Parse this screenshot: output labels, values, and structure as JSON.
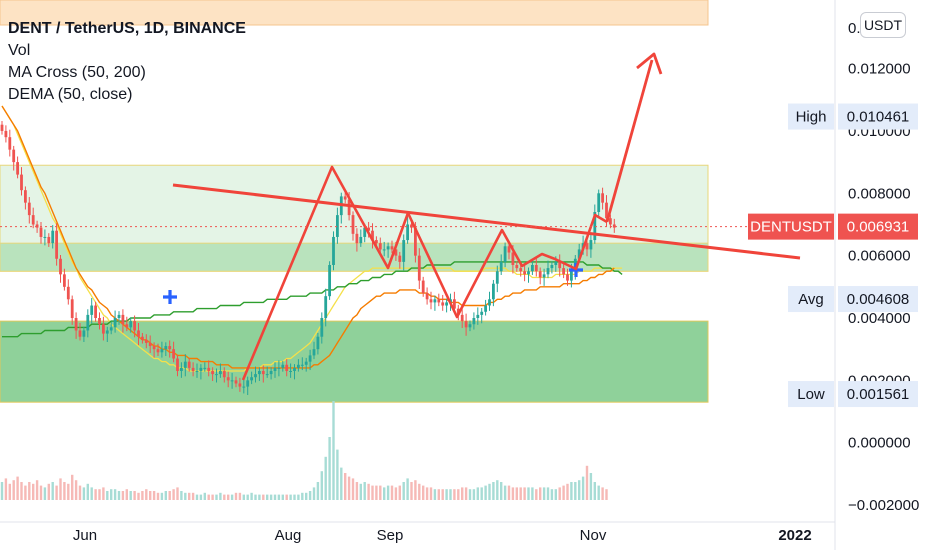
{
  "header": {
    "title": "DENT / TetherUS, 1D, BINANCE",
    "indicators": [
      "Vol",
      "MA Cross (50, 200)",
      "DEMA (50, close)"
    ]
  },
  "currency_button": "USDT",
  "colors": {
    "up": "#26a69a",
    "down": "#ef5350",
    "drawing": "#f0443a",
    "ma_fast": "#f5e04a",
    "ma_slow": "#2e9e2e",
    "dema": "#f57c00",
    "zone_green": "#8fd19a",
    "zone_light": "#e4f4e6",
    "zone_orange": "#fde3c4",
    "cross_marker": "#2962ff"
  },
  "chart_data": {
    "type": "candlestick",
    "title": "DENT / TetherUS, 1D, BINANCE",
    "ylim": [
      -0.0028,
      0.0142
    ],
    "y_ticks": [
      "0.012000",
      "0.010000",
      "0.008000",
      "0.006000",
      "0.004000",
      "0.002000",
      "0.000000",
      "−0.002000"
    ],
    "top_tick_partial": "0.",
    "x_ticks": [
      "Jun",
      "Aug",
      "Sep",
      "Nov",
      "2022"
    ],
    "price_tags": [
      {
        "label": "High",
        "value": "0.010461",
        "kind": "stat"
      },
      {
        "label": "DENTUSDT",
        "value": "0.006931",
        "kind": "last"
      },
      {
        "label": "Avg",
        "value": "0.004608",
        "kind": "stat"
      },
      {
        "label": "Low",
        "value": "0.001561",
        "kind": "stat"
      }
    ],
    "last_price": 0.006931,
    "closes": [
      0.01,
      0.0098,
      0.0094,
      0.009,
      0.0086,
      0.0081,
      0.0077,
      0.0073,
      0.007,
      0.0069,
      0.0066,
      0.0066,
      0.0064,
      0.0068,
      0.0059,
      0.0054,
      0.005,
      0.0046,
      0.004,
      0.0036,
      0.0034,
      0.0036,
      0.0041,
      0.0044,
      0.004,
      0.0038,
      0.0035,
      0.0036,
      0.0037,
      0.004,
      0.0041,
      0.0038,
      0.0037,
      0.0039,
      0.0036,
      0.0034,
      0.0033,
      0.0032,
      0.0031,
      0.003,
      0.0029,
      0.003,
      0.0031,
      0.003,
      0.0027,
      0.0023,
      0.0024,
      0.0026,
      0.0024,
      0.0023,
      0.0023,
      0.0024,
      0.0024,
      0.0023,
      0.0022,
      0.0022,
      0.0023,
      0.0021,
      0.002,
      0.002,
      0.0019,
      0.0018,
      0.0018,
      0.002,
      0.0021,
      0.0022,
      0.0023,
      0.0022,
      0.0022,
      0.0023,
      0.0024,
      0.0024,
      0.0025,
      0.0023,
      0.0023,
      0.0024,
      0.0025,
      0.0025,
      0.0026,
      0.0028,
      0.003,
      0.0034,
      0.004,
      0.0047,
      0.0057,
      0.0066,
      0.0073,
      0.0079,
      0.0078,
      0.0073,
      0.0067,
      0.0064,
      0.0066,
      0.0069,
      0.0068,
      0.0065,
      0.0064,
      0.0062,
      0.0062,
      0.0063,
      0.0062,
      0.006,
      0.0058,
      0.0065,
      0.007,
      0.0069,
      0.006,
      0.0052,
      0.0048,
      0.0046,
      0.0045,
      0.0046,
      0.0045,
      0.0044,
      0.0045,
      0.0046,
      0.0043,
      0.0041,
      0.0039,
      0.0037,
      0.0038,
      0.004,
      0.0041,
      0.0042,
      0.0044,
      0.0046,
      0.0051,
      0.0055,
      0.0058,
      0.0063,
      0.0061,
      0.0057,
      0.0056,
      0.0055,
      0.0054,
      0.0055,
      0.0057,
      0.0055,
      0.0053,
      0.0054,
      0.0056,
      0.0057,
      0.0058,
      0.0056,
      0.0054,
      0.0052,
      0.0055,
      0.0059,
      0.0062,
      0.0064,
      0.0062,
      0.0065,
      0.0074,
      0.008,
      0.0077,
      0.0072,
      0.007,
      0.0069
    ],
    "volumes": [
      1.0,
      1.2,
      0.9,
      1.1,
      1.3,
      1.0,
      0.8,
      1.0,
      0.9,
      1.1,
      0.8,
      0.7,
      0.9,
      1.0,
      0.8,
      1.2,
      1.0,
      0.9,
      1.4,
      1.1,
      0.8,
      0.7,
      0.9,
      0.7,
      0.6,
      0.6,
      0.7,
      0.5,
      0.6,
      0.6,
      0.5,
      0.5,
      0.6,
      0.5,
      0.5,
      0.4,
      0.5,
      0.6,
      0.5,
      0.5,
      0.4,
      0.4,
      0.5,
      0.5,
      0.6,
      0.7,
      0.5,
      0.4,
      0.4,
      0.4,
      0.3,
      0.3,
      0.4,
      0.3,
      0.3,
      0.3,
      0.4,
      0.3,
      0.3,
      0.3,
      0.4,
      0.4,
      0.3,
      0.3,
      0.4,
      0.3,
      0.3,
      0.3,
      0.3,
      0.3,
      0.3,
      0.3,
      0.3,
      0.3,
      0.3,
      0.3,
      0.3,
      0.4,
      0.4,
      0.5,
      0.7,
      1.0,
      1.6,
      2.4,
      3.5,
      5.5,
      2.8,
      1.8,
      1.5,
      1.3,
      1.2,
      1.0,
      0.9,
      1.0,
      0.9,
      0.8,
      0.8,
      0.8,
      0.7,
      0.8,
      0.8,
      0.7,
      0.8,
      1.0,
      1.2,
      1.0,
      1.1,
      0.9,
      0.8,
      0.7,
      0.7,
      0.6,
      0.6,
      0.6,
      0.6,
      0.6,
      0.6,
      0.6,
      0.7,
      0.7,
      0.6,
      0.6,
      0.7,
      0.7,
      0.8,
      0.9,
      1.0,
      1.1,
      1.0,
      0.8,
      0.8,
      0.7,
      0.7,
      0.7,
      0.7,
      0.7,
      0.7,
      0.6,
      0.7,
      0.7,
      0.7,
      0.6,
      0.6,
      0.7,
      0.8,
      0.9,
      1.0,
      1.0,
      1.1,
      1.3,
      1.9,
      1.5,
      1.0,
      0.8,
      0.7,
      0.6
    ],
    "ma_fast": [
      0.0108,
      0.0106,
      0.0104,
      0.0102,
      0.0099,
      0.0096,
      0.0093,
      0.009,
      0.0087,
      0.0084,
      0.0081,
      0.0078,
      0.0075,
      0.0072,
      0.007,
      0.0067,
      0.0064,
      0.0061,
      0.0058,
      0.0056,
      0.0053,
      0.0051,
      0.0049,
      0.0047,
      0.0045,
      0.0043,
      0.0041,
      0.004,
      0.0038,
      0.0037,
      0.0036,
      0.0035,
      0.0034,
      0.0033,
      0.0032,
      0.0031,
      0.003,
      0.0029,
      0.0028,
      0.0027,
      0.0027,
      0.0026,
      0.0026,
      0.0025,
      0.0025,
      0.0024,
      0.0024,
      0.0024,
      0.0023,
      0.0023,
      0.0023,
      0.0023,
      0.0023,
      0.0023,
      0.0023,
      0.0023,
      0.0023,
      0.0023,
      0.0023,
      0.0023,
      0.0023,
      0.0023,
      0.0023,
      0.0024,
      0.0024,
      0.0024,
      0.0024,
      0.0025,
      0.0025,
      0.0025,
      0.0026,
      0.0026,
      0.0026,
      0.0027,
      0.0027,
      0.0028,
      0.0029,
      0.003,
      0.0031,
      0.0032,
      0.0034,
      0.0036,
      0.0038,
      0.004,
      0.0042,
      0.0044,
      0.0046,
      0.0048,
      0.005,
      0.0051,
      0.0052,
      0.0053,
      0.0054,
      0.0055,
      0.0055,
      0.0056,
      0.0056,
      0.0056,
      0.0056,
      0.0056,
      0.0056,
      0.0056,
      0.0056,
      0.0056,
      0.0056,
      0.0056,
      0.0056,
      0.0056,
      0.0056,
      0.0056,
      0.0056,
      0.0056,
      0.0056,
      0.0056,
      0.0056,
      0.0056,
      0.0055,
      0.0055,
      0.0055,
      0.0055,
      0.0055,
      0.0055,
      0.0055,
      0.0055,
      0.0056,
      0.0056,
      0.0056,
      0.0056,
      0.0056,
      0.0056,
      0.0055,
      0.0055,
      0.0054,
      0.0054,
      0.0054,
      0.0054,
      0.0053,
      0.0053,
      0.0053,
      0.0053,
      0.0053,
      0.0053,
      0.0054,
      0.0054,
      0.0054,
      0.0054,
      0.0054,
      0.0054,
      0.0055,
      0.0055,
      0.0055,
      0.0055,
      0.0056,
      0.0056,
      0.0056,
      0.0056,
      0.0056,
      0.0056,
      0.0056,
      0.0056
    ],
    "ma_slow": [
      0.0034,
      0.0034,
      0.0034,
      0.0034,
      0.0034,
      0.0035,
      0.0035,
      0.0035,
      0.0035,
      0.0035,
      0.0035,
      0.0036,
      0.0036,
      0.0036,
      0.0036,
      0.0036,
      0.0036,
      0.0037,
      0.0037,
      0.0037,
      0.0037,
      0.0037,
      0.0037,
      0.0038,
      0.0038,
      0.0038,
      0.0038,
      0.0038,
      0.0039,
      0.0039,
      0.0039,
      0.0039,
      0.0039,
      0.004,
      0.004,
      0.004,
      0.004,
      0.004,
      0.004,
      0.0041,
      0.0041,
      0.0041,
      0.0041,
      0.0041,
      0.0042,
      0.0042,
      0.0042,
      0.0042,
      0.0042,
      0.0042,
      0.0043,
      0.0043,
      0.0043,
      0.0043,
      0.0043,
      0.0043,
      0.0044,
      0.0044,
      0.0044,
      0.0044,
      0.0044,
      0.0044,
      0.0045,
      0.0045,
      0.0045,
      0.0045,
      0.0045,
      0.0045,
      0.0046,
      0.0046,
      0.0046,
      0.0046,
      0.0046,
      0.0046,
      0.0047,
      0.0047,
      0.0047,
      0.0047,
      0.0047,
      0.0048,
      0.0048,
      0.0048,
      0.0048,
      0.0049,
      0.0049,
      0.0049,
      0.005,
      0.005,
      0.005,
      0.0051,
      0.0051,
      0.0051,
      0.0052,
      0.0052,
      0.0052,
      0.0053,
      0.0053,
      0.0053,
      0.0054,
      0.0054,
      0.0054,
      0.0055,
      0.0055,
      0.0055,
      0.0055,
      0.0056,
      0.0056,
      0.0056,
      0.0056,
      0.0057,
      0.0057,
      0.0057,
      0.0057,
      0.0057,
      0.0057,
      0.0057,
      0.0058,
      0.0058,
      0.0058,
      0.0058,
      0.0058,
      0.0058,
      0.0058,
      0.0058,
      0.0058,
      0.0058,
      0.0058,
      0.0058,
      0.0058,
      0.0058,
      0.0058,
      0.0058,
      0.0058,
      0.0058,
      0.0058,
      0.0058,
      0.0058,
      0.0058,
      0.0058,
      0.0058,
      0.0058,
      0.0058,
      0.0058,
      0.0058,
      0.0058,
      0.0058,
      0.0058,
      0.0058,
      0.0058,
      0.0058,
      0.0057,
      0.0057,
      0.0057,
      0.0057,
      0.0056,
      0.0056,
      0.0056,
      0.0055,
      0.0055,
      0.0054
    ],
    "dema": [
      0.0108,
      0.0106,
      0.0104,
      0.0102,
      0.01,
      0.0097,
      0.0094,
      0.0091,
      0.0088,
      0.0085,
      0.0082,
      0.008,
      0.0077,
      0.0074,
      0.0071,
      0.0068,
      0.0065,
      0.0062,
      0.0059,
      0.0056,
      0.0054,
      0.0052,
      0.005,
      0.0049,
      0.0047,
      0.0045,
      0.0044,
      0.0043,
      0.0041,
      0.004,
      0.0039,
      0.0038,
      0.0037,
      0.0036,
      0.0035,
      0.0034,
      0.0033,
      0.0033,
      0.0032,
      0.0031,
      0.0031,
      0.003,
      0.003,
      0.0029,
      0.0029,
      0.0028,
      0.0028,
      0.0028,
      0.0027,
      0.0027,
      0.0027,
      0.0026,
      0.0026,
      0.0026,
      0.0026,
      0.0025,
      0.0025,
      0.0025,
      0.0025,
      0.0024,
      0.0024,
      0.0024,
      0.0024,
      0.0024,
      0.0024,
      0.0024,
      0.0024,
      0.0024,
      0.0024,
      0.0024,
      0.0024,
      0.0024,
      0.0024,
      0.0024,
      0.0024,
      0.0024,
      0.0024,
      0.0024,
      0.0024,
      0.0024,
      0.0025,
      0.0025,
      0.0026,
      0.0027,
      0.0028,
      0.003,
      0.0032,
      0.0034,
      0.0036,
      0.0038,
      0.004,
      0.0041,
      0.0043,
      0.0044,
      0.0045,
      0.0046,
      0.0047,
      0.0047,
      0.0048,
      0.0048,
      0.0048,
      0.0048,
      0.0049,
      0.0049,
      0.0049,
      0.0049,
      0.0049,
      0.0048,
      0.0048,
      0.0048,
      0.0047,
      0.0047,
      0.0046,
      0.0046,
      0.0046,
      0.0045,
      0.0045,
      0.0045,
      0.0044,
      0.0044,
      0.0044,
      0.0044,
      0.0044,
      0.0044,
      0.0044,
      0.0045,
      0.0045,
      0.0046,
      0.0046,
      0.0047,
      0.0047,
      0.0048,
      0.0048,
      0.0048,
      0.0049,
      0.0049,
      0.0049,
      0.0049,
      0.005,
      0.005,
      0.005,
      0.005,
      0.005,
      0.005,
      0.0051,
      0.0051,
      0.0051,
      0.0051,
      0.0051,
      0.0052,
      0.0052,
      0.0053,
      0.0053,
      0.0054,
      0.0054,
      0.0055,
      0.0055,
      0.0056
    ]
  }
}
